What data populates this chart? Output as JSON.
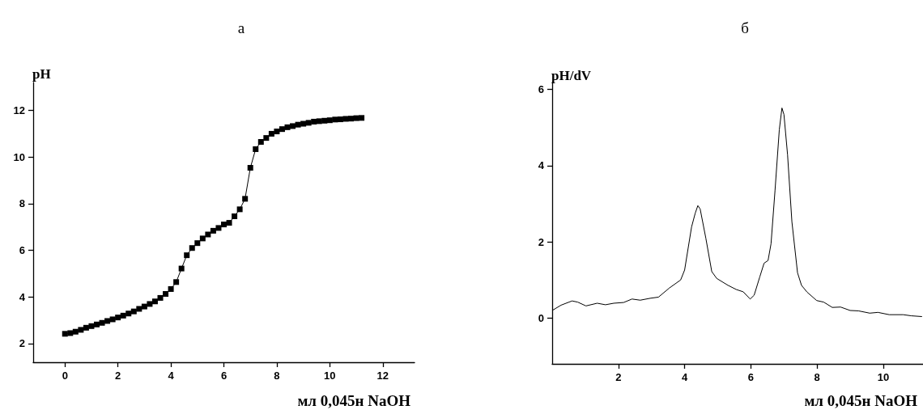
{
  "chart_data": [
    {
      "type": "line",
      "title": "а",
      "ylabel": "pH",
      "xlabel": "мл 0,045н NaOH",
      "marker": "square",
      "xlim": [
        -1.2,
        13.2
      ],
      "xticks": [
        0,
        2,
        4,
        6,
        8,
        10,
        12
      ],
      "ylim": [
        1.2,
        13.2
      ],
      "yticks": [
        2,
        4,
        6,
        8,
        10,
        12
      ],
      "x": [
        0,
        0.2,
        0.4,
        0.6,
        0.8,
        1.0,
        1.2,
        1.4,
        1.6,
        1.8,
        2.0,
        2.2,
        2.4,
        2.6,
        2.8,
        3.0,
        3.2,
        3.4,
        3.6,
        3.8,
        4.0,
        4.2,
        4.4,
        4.6,
        4.8,
        5.0,
        5.2,
        5.4,
        5.6,
        5.8,
        6.0,
        6.2,
        6.4,
        6.6,
        6.8,
        7.0,
        7.2,
        7.4,
        7.6,
        7.8,
        8.0,
        8.2,
        8.4,
        8.6,
        8.8,
        9.0,
        9.2,
        9.4,
        9.6,
        9.8,
        10.0,
        10.2,
        10.4,
        10.6,
        10.8,
        11.0,
        11.2
      ],
      "series": [
        {
          "color": "#000000",
          "values": [
            2.42,
            2.45,
            2.51,
            2.59,
            2.68,
            2.75,
            2.82,
            2.89,
            2.97,
            3.04,
            3.12,
            3.2,
            3.29,
            3.38,
            3.49,
            3.59,
            3.7,
            3.81,
            3.96,
            4.13,
            4.34,
            4.64,
            5.22,
            5.79,
            6.1,
            6.31,
            6.51,
            6.68,
            6.84,
            6.96,
            7.11,
            7.18,
            7.46,
            7.76,
            8.21,
            9.54,
            10.34,
            10.65,
            10.82,
            11.0,
            11.1,
            11.2,
            11.28,
            11.33,
            11.39,
            11.43,
            11.47,
            11.52,
            11.54,
            11.56,
            11.58,
            11.61,
            11.62,
            11.64,
            11.65,
            11.67,
            11.68
          ]
        }
      ]
    },
    {
      "type": "line",
      "title": "б",
      "ylabel": "pH/dV",
      "xlabel": "мл 0,045н NaOH",
      "marker": "none",
      "xlim": [
        0,
        11.2
      ],
      "xticks": [
        2,
        4,
        6,
        8,
        10
      ],
      "ylim": [
        -1.2,
        6.2
      ],
      "yticks": [
        0,
        2,
        4,
        6
      ],
      "x": [
        0,
        0.27,
        0.6,
        0.77,
        1.02,
        1.36,
        1.61,
        1.86,
        2.16,
        2.41,
        2.66,
        2.96,
        3.21,
        3.54,
        3.88,
        4.0,
        4.21,
        4.32,
        4.4,
        4.47,
        4.64,
        4.82,
        4.97,
        5.31,
        5.56,
        5.77,
        5.98,
        6.1,
        6.27,
        6.4,
        6.52,
        6.61,
        6.73,
        6.86,
        6.94,
        7.0,
        7.11,
        7.24,
        7.41,
        7.53,
        7.7,
        7.99,
        8.2,
        8.46,
        8.71,
        9.0,
        9.25,
        9.59,
        9.84,
        10.18,
        10.6,
        10.85,
        11.17
      ],
      "series": [
        {
          "color": "#000000",
          "values": [
            0.2,
            0.34,
            0.45,
            0.42,
            0.32,
            0.39,
            0.35,
            0.39,
            0.41,
            0.5,
            0.47,
            0.52,
            0.55,
            0.79,
            1.0,
            1.26,
            2.39,
            2.75,
            2.95,
            2.86,
            2.1,
            1.22,
            1.04,
            0.86,
            0.75,
            0.69,
            0.5,
            0.6,
            1.08,
            1.44,
            1.51,
            1.95,
            3.34,
            4.94,
            5.51,
            5.34,
            4.28,
            2.53,
            1.19,
            0.86,
            0.68,
            0.46,
            0.42,
            0.28,
            0.29,
            0.2,
            0.19,
            0.13,
            0.15,
            0.09,
            0.09,
            0.06,
            0.04
          ]
        }
      ]
    }
  ]
}
